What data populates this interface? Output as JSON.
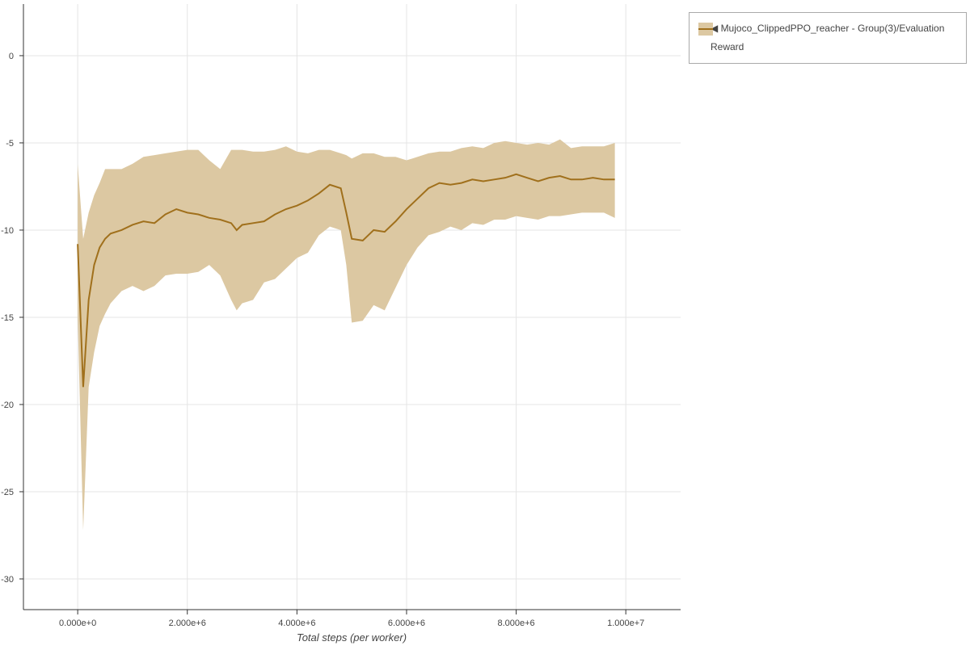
{
  "chart_data": {
    "type": "line_band",
    "xlabel": "Total steps (per worker)",
    "x": [
      0,
      100000,
      200000,
      300000,
      400000,
      500000,
      600000,
      800000,
      1000000,
      1200000,
      1400000,
      1600000,
      1800000,
      2000000,
      2200000,
      2400000,
      2600000,
      2800000,
      2900000,
      3000000,
      3200000,
      3400000,
      3600000,
      3800000,
      4000000,
      4200000,
      4400000,
      4600000,
      4800000,
      4900000,
      5000000,
      5200000,
      5400000,
      5600000,
      5800000,
      6000000,
      6200000,
      6400000,
      6600000,
      6800000,
      7000000,
      7200000,
      7400000,
      7600000,
      7800000,
      8000000,
      8200000,
      8400000,
      8600000,
      8800000,
      9000000,
      9200000,
      9400000,
      9600000,
      9800000
    ],
    "series": [
      {
        "name": "◀ Mujoco_ClippedPPO_reacher - Group(3)/Evaluation Reward",
        "color": "#a0701c",
        "band_color": "#dcc8a2",
        "values": [
          -10.8,
          -19,
          -14,
          -12,
          -11,
          -10.5,
          -10.2,
          -10,
          -9.7,
          -9.5,
          -9.6,
          -9.1,
          -8.8,
          -9.0,
          -9.1,
          -9.3,
          -9.4,
          -9.6,
          -10,
          -9.7,
          -9.6,
          -9.5,
          -9.1,
          -8.8,
          -8.6,
          -8.3,
          -7.9,
          -7.4,
          -7.6,
          -9,
          -10.5,
          -10.6,
          -10.0,
          -10.1,
          -9.5,
          -8.8,
          -8.2,
          -7.6,
          -7.3,
          -7.4,
          -7.3,
          -7.1,
          -7.2,
          -7.1,
          -7.0,
          -6.8,
          -7.0,
          -7.2,
          -7.0,
          -6.9,
          -7.1,
          -7.1,
          -7.0,
          -7.1,
          -7.1
        ],
        "upper": [
          -6.2,
          -10.5,
          -9,
          -8,
          -7.3,
          -6.5,
          -6.5,
          -6.5,
          -6.2,
          -5.8,
          -5.7,
          -5.6,
          -5.5,
          -5.4,
          -5.4,
          -6.0,
          -6.5,
          -5.4,
          -5.4,
          -5.4,
          -5.5,
          -5.5,
          -5.4,
          -5.2,
          -5.5,
          -5.6,
          -5.4,
          -5.4,
          -5.6,
          -5.7,
          -5.9,
          -5.6,
          -5.6,
          -5.8,
          -5.8,
          -6.0,
          -5.8,
          -5.6,
          -5.5,
          -5.5,
          -5.3,
          -5.2,
          -5.3,
          -5.0,
          -4.9,
          -5.0,
          -5.1,
          -5.0,
          -5.1,
          -4.8,
          -5.3,
          -5.2,
          -5.2,
          -5.2,
          -5.0
        ],
        "lower": [
          -15,
          -27.2,
          -19,
          -17,
          -15.5,
          -14.8,
          -14.2,
          -13.5,
          -13.2,
          -13.5,
          -13.2,
          -12.6,
          -12.5,
          -12.5,
          -12.4,
          -12.0,
          -12.6,
          -14.0,
          -14.6,
          -14.2,
          -14,
          -13,
          -12.8,
          -12.2,
          -11.6,
          -11.3,
          -10.3,
          -9.8,
          -10,
          -12,
          -15.3,
          -15.2,
          -14.3,
          -14.6,
          -13.3,
          -12,
          -11,
          -10.3,
          -10.1,
          -9.8,
          -10,
          -9.6,
          -9.7,
          -9.4,
          -9.4,
          -9.2,
          -9.3,
          -9.4,
          -9.2,
          -9.2,
          -9.1,
          -9.0,
          -9.0,
          -9.0,
          -9.3
        ]
      }
    ],
    "xlim": [
      -990000,
      11000000
    ],
    "ylim": [
      -31.76,
      2.96
    ],
    "xticks": [
      {
        "value": 0,
        "label": "0.000e+0"
      },
      {
        "value": 2000000,
        "label": "2.000e+6"
      },
      {
        "value": 4000000,
        "label": "4.000e+6"
      },
      {
        "value": 6000000,
        "label": "6.000e+6"
      },
      {
        "value": 8000000,
        "label": "8.000e+6"
      },
      {
        "value": 10000000,
        "label": "1.000e+7"
      }
    ],
    "yticks": [
      0,
      -5,
      -10,
      -15,
      -20,
      -25,
      -30
    ],
    "grid": true,
    "legend": "outside-top-right"
  }
}
